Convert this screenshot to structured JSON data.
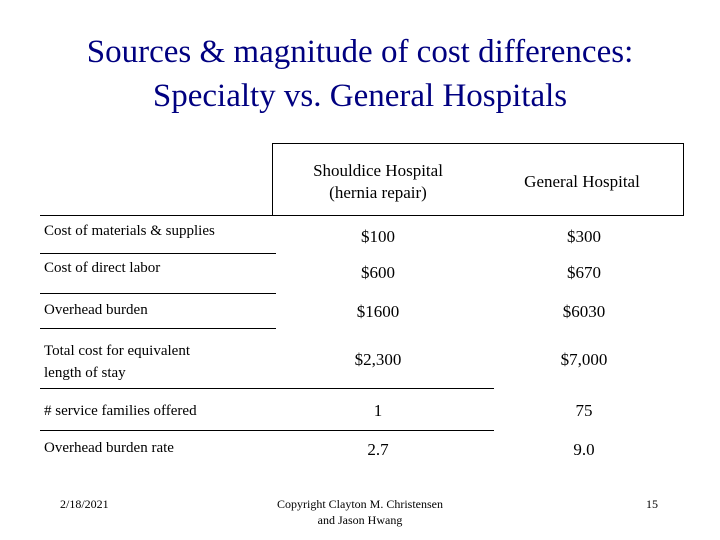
{
  "slide": {
    "title_line1": "Sources & magnitude of cost differences:",
    "title_line2": "Specialty vs. General Hospitals"
  },
  "table": {
    "headers": {
      "col1_line1": "Shouldice Hospital",
      "col1_line2": "(hernia repair)",
      "col2": "General Hospital"
    },
    "rows": [
      {
        "label": "Cost of materials & supplies",
        "shouldice": "$100",
        "general": "$300"
      },
      {
        "label": "Cost of direct labor",
        "shouldice": "$600",
        "general": "$670"
      },
      {
        "label": "Overhead burden",
        "shouldice": "$1600",
        "general": "$6030"
      },
      {
        "label_line1": "Total cost for equivalent",
        "label_line2": "length of stay",
        "shouldice": "$2,300",
        "general": "$7,000"
      },
      {
        "label": "#  service families offered",
        "shouldice": "1",
        "general": "75"
      },
      {
        "label": "Overhead burden rate",
        "shouldice": "2.7",
        "general": "9.0"
      }
    ]
  },
  "footer": {
    "date": "2/18/2021",
    "copyright_line1": "Copyright Clayton M. Christensen",
    "copyright_line2": "and Jason Hwang",
    "page_number": "15"
  }
}
